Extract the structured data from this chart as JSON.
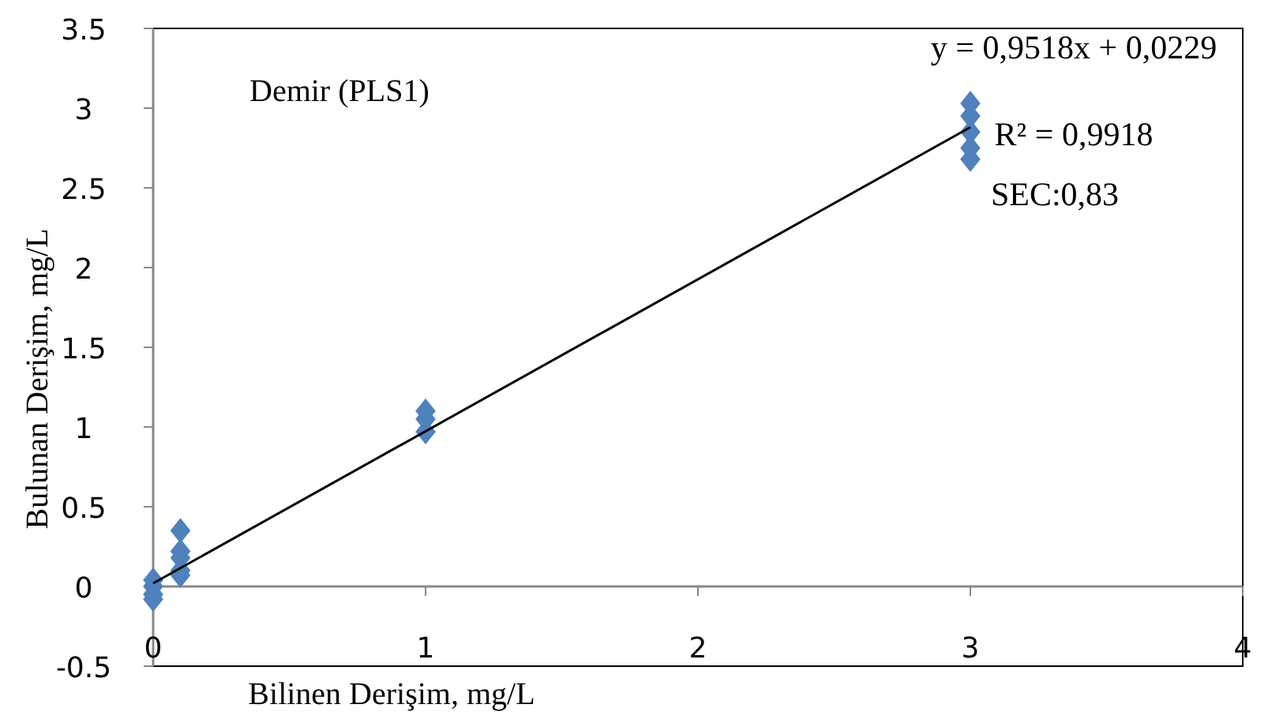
{
  "chart_data": {
    "type": "scatter",
    "title": "Demir (PLS1)",
    "xlabel": "Bilinen Derişim, mg/L",
    "ylabel": "Bulunan Derişim, mg/L",
    "xlim": [
      0,
      4
    ],
    "xticks": [
      0,
      1,
      2,
      3,
      4
    ],
    "ylim": [
      -0.5,
      3.5
    ],
    "yticks": [
      -0.5,
      0,
      0.5,
      1,
      1.5,
      2,
      2.5,
      3,
      3.5
    ],
    "series": [
      {
        "color": "#4f81bd",
        "marker": "diamond",
        "x": [
          0,
          0,
          0,
          0,
          0.1,
          0.1,
          0.1,
          0.1,
          0.1,
          1,
          1,
          1,
          3,
          3,
          3,
          3,
          3
        ],
        "values": [
          -0.08,
          -0.05,
          0,
          0.04,
          0.35,
          0.22,
          0.18,
          0.1,
          0.07,
          1.1,
          1.05,
          0.97,
          3.03,
          2.95,
          2.85,
          2.75,
          2.68
        ]
      },
      {
        "type": "line",
        "color": "#000000",
        "x": [
          0,
          3
        ],
        "values": [
          0.02,
          2.88
        ]
      }
    ],
    "annotations": [
      "y = 0,9518x + 0,0229",
      "R² = 0,9918",
      "SEC:0,83"
    ]
  }
}
